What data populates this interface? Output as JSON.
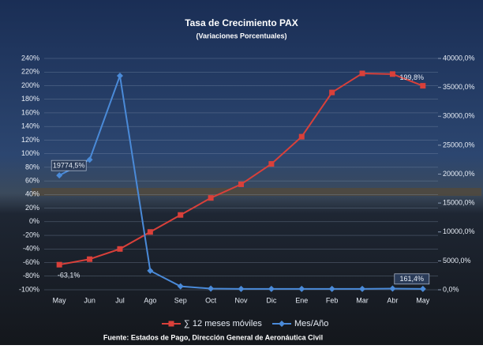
{
  "chart_data": {
    "type": "line",
    "title": "Tasa de Crecimiento PAX",
    "subtitle": "(Variaciones Porcentuales)",
    "footer": "Fuente: Estados de Pago, Dirección General de Aeronáutica Civil",
    "categories": [
      "May",
      "Jun",
      "Jul",
      "Ago",
      "Sep",
      "Oct",
      "Nov",
      "Dic",
      "Ene",
      "Feb",
      "Mar",
      "Abr",
      "May"
    ],
    "series": [
      {
        "name": "∑ 12 meses móviles",
        "color": "#d9403a",
        "marker": "square",
        "values": [
          -63.1,
          -55,
          -40,
          -15,
          10,
          35,
          55,
          85,
          125,
          190,
          218,
          217,
          199.8
        ],
        "value_labels": [
          "-63,1%",
          null,
          null,
          null,
          null,
          null,
          null,
          null,
          null,
          null,
          null,
          null,
          "199,8%"
        ]
      },
      {
        "name": "Mes/Año",
        "color": "#4a8ad8",
        "marker": "diamond",
        "axis": "y2",
        "values": [
          19774.5,
          22500,
          37000,
          3300,
          600,
          200,
          150,
          150,
          150,
          150,
          150,
          200,
          161.4
        ],
        "value_labels": [
          "19774,5%",
          null,
          null,
          null,
          null,
          null,
          null,
          null,
          null,
          null,
          null,
          null,
          "161,4%"
        ]
      }
    ],
    "ylim": [
      -100,
      240
    ],
    "yticks": [
      {
        "value": -100,
        "label": "-100%"
      },
      {
        "value": -80,
        "label": "-80%"
      },
      {
        "value": -60,
        "label": "-60%"
      },
      {
        "value": -40,
        "label": "-40%"
      },
      {
        "value": -20,
        "label": "-20%"
      },
      {
        "value": 0,
        "label": "0%"
      },
      {
        "value": 20,
        "label": "20%"
      },
      {
        "value": 40,
        "label": "40%"
      },
      {
        "value": 60,
        "label": "60%"
      },
      {
        "value": 80,
        "label": "80%"
      },
      {
        "value": 100,
        "label": "100%"
      },
      {
        "value": 120,
        "label": "120%"
      },
      {
        "value": 140,
        "label": "140%"
      },
      {
        "value": 160,
        "label": "160%"
      },
      {
        "value": 180,
        "label": "180%"
      },
      {
        "value": 200,
        "label": "200%"
      },
      {
        "value": 220,
        "label": "220%"
      },
      {
        "value": 240,
        "label": "240%"
      }
    ],
    "y2lim": [
      0,
      40000
    ],
    "y2ticks": [
      {
        "value": 0,
        "label": "0,0%"
      },
      {
        "value": 5000,
        "label": "5000,0%"
      },
      {
        "value": 10000,
        "label": "10000,0%"
      },
      {
        "value": 15000,
        "label": "15000,0%"
      },
      {
        "value": 20000,
        "label": "20000,0%"
      },
      {
        "value": 25000,
        "label": "25000,0%"
      },
      {
        "value": 30000,
        "label": "30000,0%"
      },
      {
        "value": 35000,
        "label": "35000,0%"
      },
      {
        "value": 40000,
        "label": "40000,0%"
      }
    ],
    "legend": "bottom"
  }
}
